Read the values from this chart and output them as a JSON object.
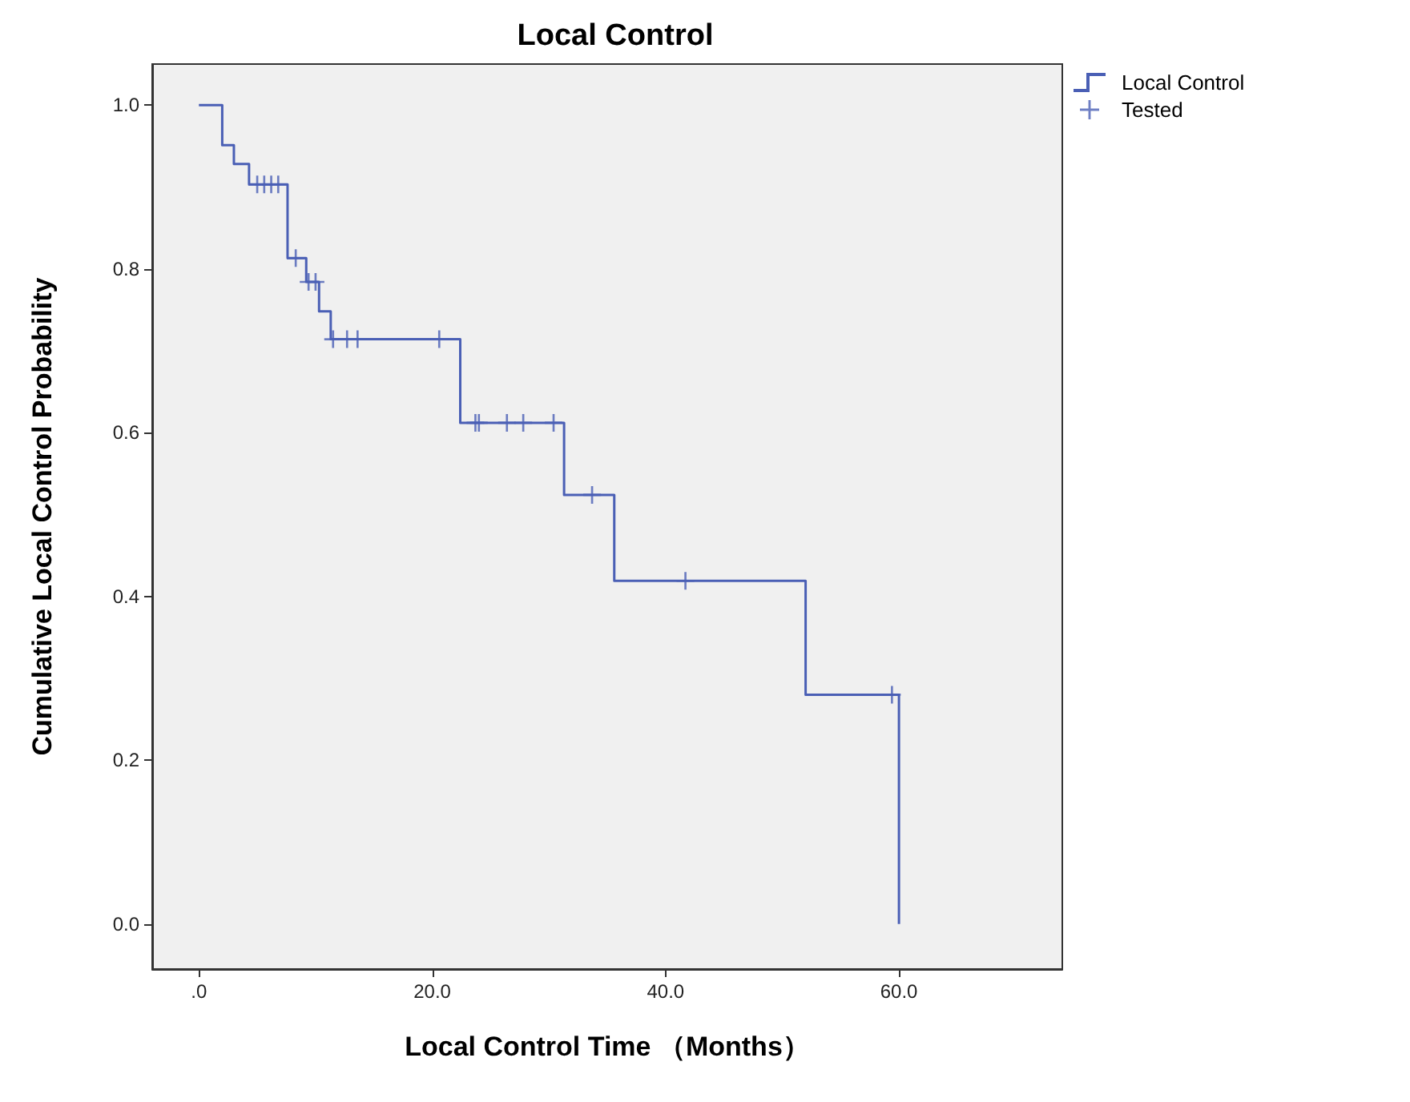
{
  "chart_data": {
    "type": "step",
    "title": "Local Control",
    "xlabel": "Local Control Time （Months）",
    "ylabel": "Cumulative Local Control Probability",
    "xlim": [
      -4,
      74
    ],
    "xticks": [
      {
        "value": 0,
        "label": ".0"
      },
      {
        "value": 20,
        "label": "20.0"
      },
      {
        "value": 40,
        "label": "40.0"
      },
      {
        "value": 60,
        "label": "60.0"
      }
    ],
    "ylim": [
      -0.055,
      1.05
    ],
    "yticks": [
      {
        "value": 0,
        "label": "0.0"
      },
      {
        "value": 0.2,
        "label": "0.2"
      },
      {
        "value": 0.4,
        "label": "0.4"
      },
      {
        "value": 0.6,
        "label": "0.6"
      },
      {
        "value": 0.8,
        "label": "0.8"
      },
      {
        "value": 1,
        "label": "1.0"
      }
    ],
    "grid": false,
    "legend": "top right",
    "series": [
      {
        "name": "Local Control",
        "color": "#4a5fb5",
        "marker": "none",
        "line_style": "solid",
        "x": [
          0,
          2.0,
          3.0,
          4.3,
          7.6,
          9.2,
          10.3,
          11.3,
          22.4,
          31.3,
          35.6,
          52.0,
          60.0
        ],
        "values": [
          1.0,
          0.951,
          0.928,
          0.903,
          0.813,
          0.784,
          0.748,
          0.714,
          0.612,
          0.524,
          0.419,
          0.28,
          0.0
        ]
      },
      {
        "name": "Tested",
        "type": "scatter",
        "color": "#4a5fb5",
        "marker": "cross",
        "x": [
          5.0,
          5.6,
          6.2,
          6.8,
          8.3,
          9.4,
          10.0,
          11.5,
          12.7,
          13.6,
          20.6,
          23.7,
          24.0,
          26.4,
          27.8,
          30.4,
          33.7,
          41.7,
          59.4
        ],
        "values": [
          0.903,
          0.903,
          0.903,
          0.903,
          0.813,
          0.784,
          0.784,
          0.714,
          0.714,
          0.714,
          0.714,
          0.612,
          0.612,
          0.612,
          0.612,
          0.612,
          0.524,
          0.419,
          0.28
        ]
      }
    ]
  }
}
